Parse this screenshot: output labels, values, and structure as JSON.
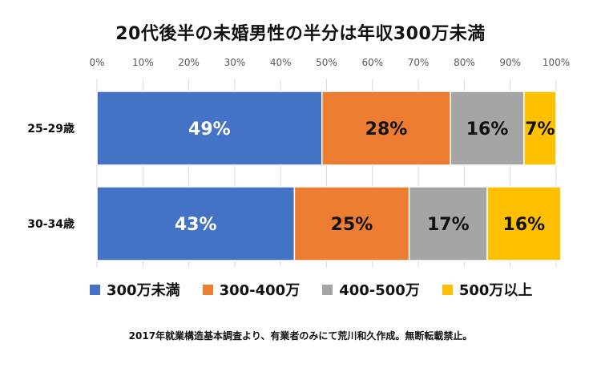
{
  "chart_data": {
    "type": "bar",
    "orientation": "horizontal",
    "stacked": true,
    "title": "20代後半の未婚男性の半分は年収300万未満",
    "categories": [
      "25-29歳",
      "30-34歳"
    ],
    "series": [
      {
        "name": "300万未満",
        "values": [
          49,
          43
        ],
        "labels": [
          "49%",
          "43%"
        ],
        "color": "#4472C4",
        "label_color": "#ffffff"
      },
      {
        "name": "300-400万",
        "values": [
          28,
          25
        ],
        "labels": [
          "28%",
          "25%"
        ],
        "color": "#ED7D31",
        "label_color": "#111111"
      },
      {
        "name": "400-500万",
        "values": [
          16,
          17
        ],
        "labels": [
          "16%",
          "17%"
        ],
        "color": "#A5A5A5",
        "label_color": "#111111"
      },
      {
        "name": "500万以上",
        "values": [
          7,
          16
        ],
        "labels": [
          "7%",
          "16%"
        ],
        "color": "#FFC000",
        "label_color": "#111111"
      }
    ],
    "xlim": [
      0,
      100
    ],
    "x_ticks": [
      "0%",
      "10%",
      "20%",
      "30%",
      "40%",
      "50%",
      "60%",
      "70%",
      "80%",
      "90%",
      "100%"
    ],
    "grid": true,
    "legend_position": "bottom"
  },
  "footnote": "2017年就業構造基本調査より、有業者のみにて荒川和久作成。無断転載禁止。"
}
